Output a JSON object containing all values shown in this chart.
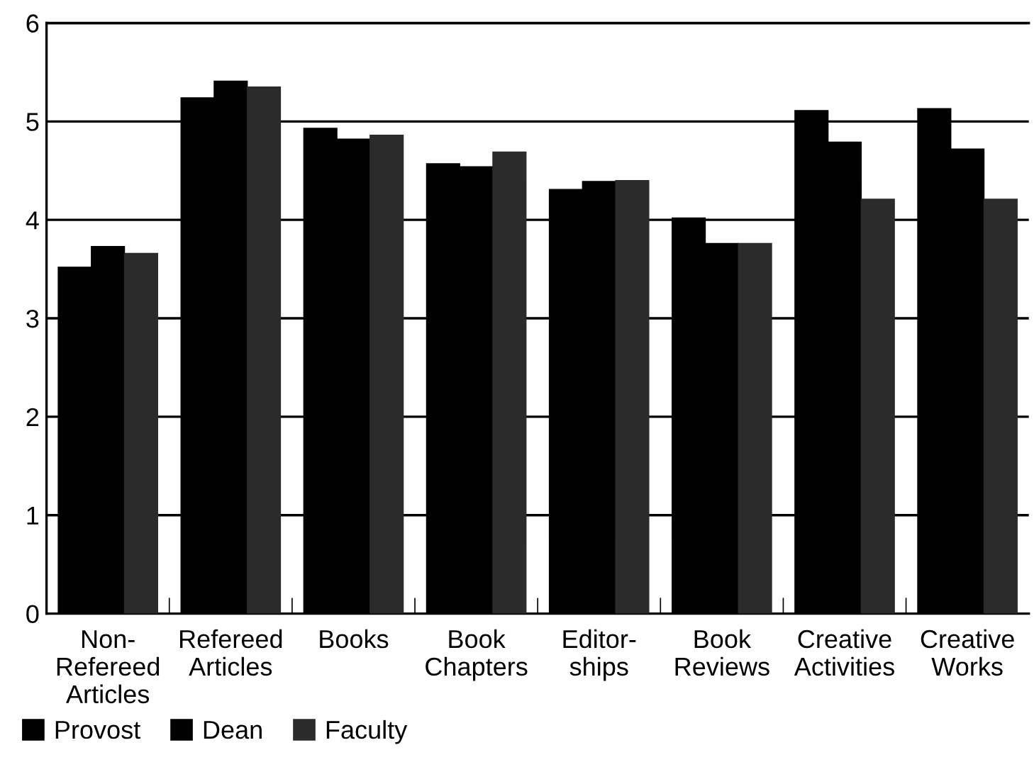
{
  "chart_data": {
    "type": "bar",
    "categories": [
      "Non-\nRefereed\nArticles",
      "Refereed\nArticles",
      "Books",
      "Book\nChapters",
      "Editor-\nships",
      "Book\nReviews",
      "Creative\nActivities",
      "Creative\nWorks"
    ],
    "series": [
      {
        "name": "Provost",
        "color": "#000000",
        "values": [
          3.52,
          5.24,
          4.93,
          4.57,
          4.31,
          4.02,
          5.11,
          5.13
        ]
      },
      {
        "name": "Dean",
        "color": "#000000",
        "values": [
          3.73,
          5.41,
          4.82,
          4.54,
          4.39,
          3.76,
          4.79,
          4.72
        ]
      },
      {
        "name": "Faculty",
        "color": "#2b2b2b",
        "values": [
          3.66,
          5.35,
          4.86,
          4.69,
          4.4,
          3.76,
          4.21,
          4.21
        ]
      }
    ],
    "ylim": [
      0,
      6
    ],
    "yticks": [
      0,
      1,
      2,
      3,
      4,
      5,
      6
    ],
    "grid": "y",
    "legend": "bottom left"
  }
}
